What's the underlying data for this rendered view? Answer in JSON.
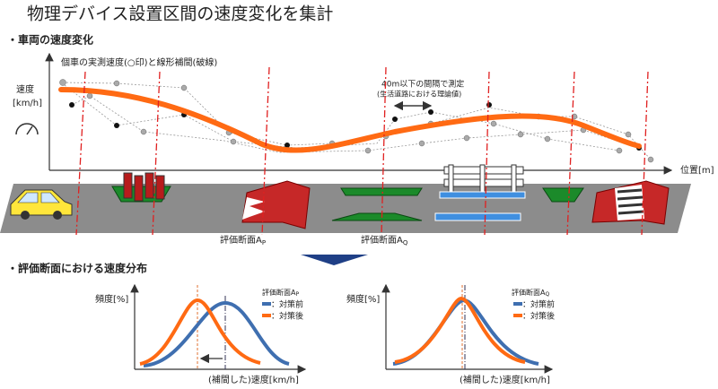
{
  "title": "物理デバイス設置区間の速度変化を集計",
  "speed_section": {
    "heading": "・車両の速度変化",
    "note": "個車の実測速度(○印)と線形補間(破線)",
    "y_label": [
      "速度",
      "[km/h]"
    ],
    "x_label": "位置[m]",
    "interval_note": [
      "40m以下の間隔で測定",
      "(生活道路における理論値)"
    ],
    "sections": [
      {
        "text": "評価断面A",
        "sub": "P"
      },
      {
        "text": "評価断面A",
        "sub": "Q"
      }
    ]
  },
  "distribution_section": {
    "heading": "・評価断面における速度分布",
    "panels": [
      {
        "y_label": "頻度[%]",
        "legend_title": {
          "text": "評価断面A",
          "sub": "P"
        },
        "legend": [
          "：対策前",
          "：対策後"
        ],
        "x_label": "(補間した)速度[km/h]"
      },
      {
        "y_label": "頻度[%]",
        "legend_title": {
          "text": "評価断面A",
          "sub": "Q"
        },
        "legend": [
          "：対策前",
          "：対策後"
        ],
        "x_label": "(補間した)速度[km/h]"
      }
    ]
  }
}
